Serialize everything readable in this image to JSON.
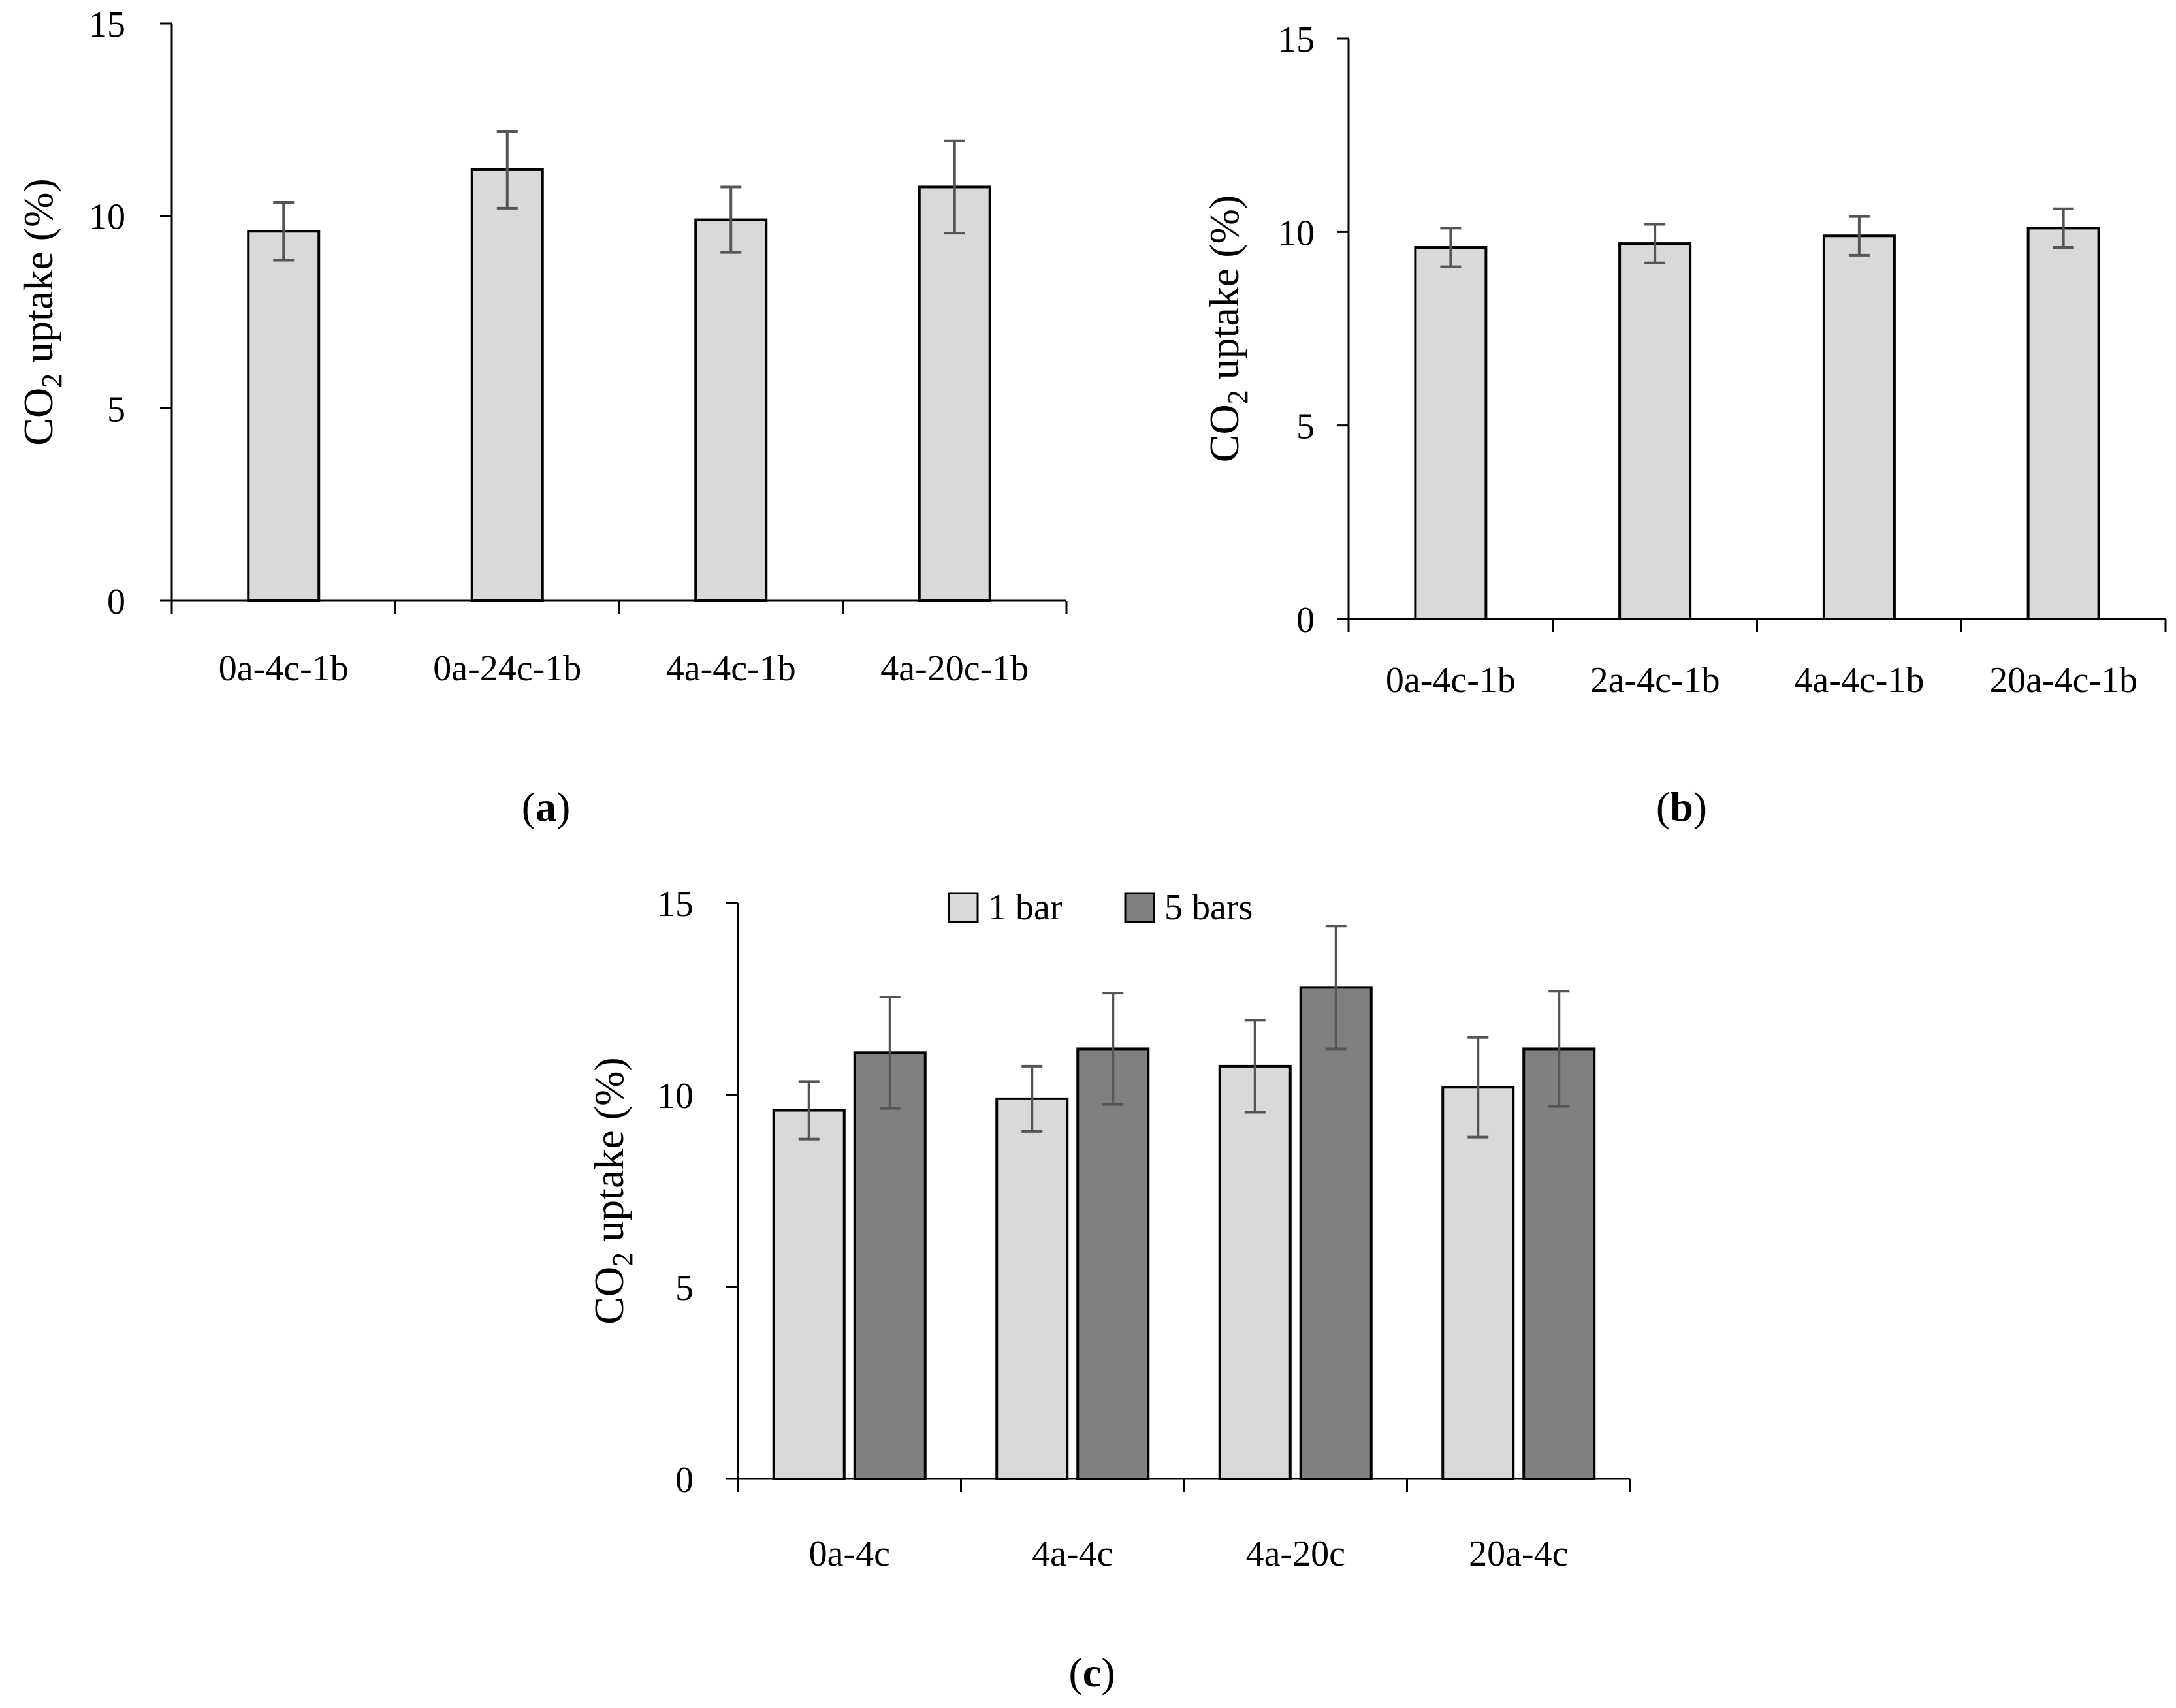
{
  "chart_data": [
    {
      "id": "a",
      "type": "bar",
      "panel_label": "a",
      "ylabel_main": "CO",
      "ylabel_sub": "2",
      "ylabel_rest": " uptake (%)",
      "ylim": [
        0,
        15
      ],
      "yticks": [
        "0",
        "5",
        "10",
        "15"
      ],
      "categories": [
        "0a-4c-1b",
        "0a-24c-1b",
        "4a-4c-1b",
        "4a-20c-1b"
      ],
      "series": [
        {
          "name": "1 bar",
          "color": "#d9d9d9",
          "values": [
            9.6,
            11.2,
            9.9,
            10.75
          ],
          "errors": [
            0.75,
            1.0,
            0.85,
            1.2
          ]
        }
      ],
      "legend": false
    },
    {
      "id": "b",
      "type": "bar",
      "panel_label": "b",
      "ylabel_main": "CO",
      "ylabel_sub": "2",
      "ylabel_rest": " uptake (%)",
      "ylim": [
        0,
        15
      ],
      "yticks": [
        "0",
        "5",
        "10",
        "15"
      ],
      "categories": [
        "0a-4c-1b",
        "2a-4c-1b",
        "4a-4c-1b",
        "20a-4c-1b"
      ],
      "series": [
        {
          "name": "1 bar",
          "color": "#d9d9d9",
          "values": [
            9.6,
            9.7,
            9.9,
            10.1
          ],
          "errors": [
            0.5,
            0.5,
            0.5,
            0.5
          ]
        }
      ],
      "legend": false
    },
    {
      "id": "c",
      "type": "bar",
      "panel_label": "c",
      "ylabel_main": "CO",
      "ylabel_sub": "2",
      "ylabel_rest": " uptake (%)",
      "ylim": [
        0,
        15
      ],
      "yticks": [
        "0",
        "5",
        "10",
        "15"
      ],
      "categories": [
        "0a-4c",
        "4a-4c",
        "4a-20c",
        "20a-4c"
      ],
      "series": [
        {
          "name": "1 bar",
          "color": "#d9d9d9",
          "values": [
            9.6,
            9.9,
            10.75,
            10.2
          ],
          "errors": [
            0.75,
            0.85,
            1.2,
            1.3
          ]
        },
        {
          "name": "5 bars",
          "color": "#808080",
          "values": [
            11.1,
            11.2,
            12.8,
            11.2
          ],
          "errors": [
            1.45,
            1.45,
            1.6,
            1.5
          ]
        }
      ],
      "legend": true
    }
  ]
}
